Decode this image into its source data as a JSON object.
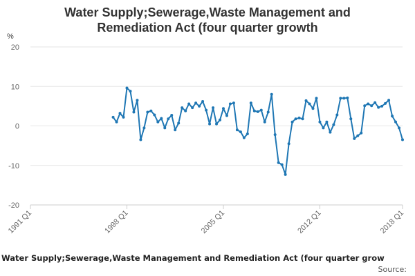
{
  "chart_data": {
    "type": "line",
    "title_lines": [
      "Water Supply;Sewerage,Waste Management and",
      "Remediation Act (four quarter growth"
    ],
    "ylabel": "%",
    "ylim": [
      -20,
      20
    ],
    "yticks": [
      20,
      10,
      0,
      -10,
      -20
    ],
    "x_ticks": [
      "1991 Q1",
      "1998 Q1",
      "2005 Q1",
      "2012 Q1",
      "2018 Q1"
    ],
    "x_range": [
      "1991 Q1",
      "2018 Q1"
    ],
    "grid": true,
    "series": [
      {
        "name": "Water Supply;Sewerage,Waste Management and Remediation Act (four quarter grow",
        "color": "#1f77b4",
        "start": "1997 Q1",
        "values": [
          2.2,
          1.0,
          3.2,
          2.2,
          9.6,
          8.8,
          3.5,
          6.5,
          -3.5,
          -0.5,
          3.5,
          3.8,
          2.8,
          1.0,
          1.9,
          -0.5,
          1.8,
          2.7,
          -1.0,
          0.7,
          4.6,
          3.8,
          5.6,
          4.6,
          5.8,
          5.0,
          6.2,
          4.0,
          0.5,
          4.6,
          0.5,
          1.5,
          4.4,
          2.6,
          5.6,
          5.8,
          -1.0,
          -1.5,
          -3.0,
          -2.0,
          5.8,
          3.8,
          3.6,
          4.0,
          1.0,
          3.5,
          8.0,
          -2.2,
          -9.3,
          -9.8,
          -12.3,
          -4.5,
          1.0,
          1.8,
          2.0,
          1.8,
          6.4,
          5.6,
          4.4,
          7.0,
          1.0,
          -0.5,
          1.0,
          -1.6,
          0.3,
          2.8,
          7.0,
          7.0,
          7.1,
          1.8,
          -3.2,
          -2.5,
          -1.8,
          5.1,
          5.6,
          5.1,
          5.9,
          4.7,
          5.0,
          5.7,
          6.5,
          2.5,
          1.0,
          -0.5,
          -3.5
        ]
      }
    ]
  },
  "footer": {
    "series_label": "Water Supply;Sewerage,Waste Management and Remediation Act (four quarter grow",
    "source_label": "Source:"
  }
}
